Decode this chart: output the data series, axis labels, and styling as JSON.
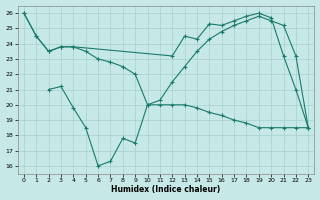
{
  "xlabel": "Humidex (Indice chaleur)",
  "xlim": [
    -0.5,
    23.5
  ],
  "ylim": [
    15.5,
    26.5
  ],
  "xticks": [
    0,
    1,
    2,
    3,
    4,
    5,
    6,
    7,
    8,
    9,
    10,
    11,
    12,
    13,
    14,
    15,
    16,
    17,
    18,
    19,
    20,
    21,
    22,
    23
  ],
  "yticks": [
    16,
    17,
    18,
    19,
    20,
    21,
    22,
    23,
    24,
    25,
    26
  ],
  "bg_color": "#c6e8e6",
  "line_color": "#1a7a6e",
  "line1_x": [
    0,
    1,
    2,
    3,
    4,
    12,
    13,
    14,
    15,
    16,
    17,
    18,
    19,
    20,
    21,
    22,
    23
  ],
  "line1_y": [
    26,
    24.5,
    23.5,
    23.8,
    23.8,
    23.2,
    24.5,
    24.3,
    25.3,
    25.2,
    25.5,
    25.8,
    26.0,
    25.7,
    23.2,
    21.0,
    18.5
  ],
  "line2_x": [
    0,
    1,
    2,
    3,
    4,
    5,
    6,
    7,
    8,
    9,
    10,
    11,
    12,
    13,
    14,
    15,
    16,
    17,
    18,
    19,
    20,
    21,
    22,
    23
  ],
  "line2_y": [
    26,
    24.5,
    23.5,
    23.8,
    23.8,
    23.5,
    23.0,
    22.8,
    22.5,
    22.0,
    20.0,
    20.3,
    21.5,
    22.5,
    23.5,
    24.3,
    24.8,
    25.2,
    25.5,
    25.8,
    25.5,
    25.2,
    23.2,
    18.5
  ],
  "line3_x": [
    2,
    3,
    4,
    5,
    6,
    7,
    8,
    9,
    10,
    11,
    12,
    13,
    14,
    15,
    16,
    17,
    18,
    19,
    20,
    21,
    22,
    23
  ],
  "line3_y": [
    21.0,
    21.2,
    19.8,
    18.5,
    16.0,
    16.3,
    17.8,
    17.5,
    20.0,
    20.0,
    20.0,
    20.0,
    19.8,
    19.5,
    19.3,
    19.0,
    18.8,
    18.5,
    18.5,
    18.5,
    18.5,
    18.5
  ]
}
